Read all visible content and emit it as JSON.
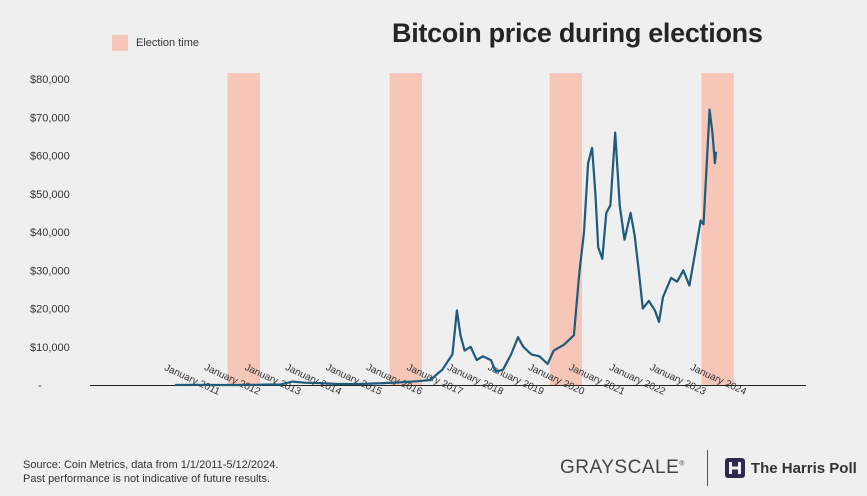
{
  "title": "Bitcoin price during elections",
  "legend": {
    "label": "Election time",
    "color": "#f6c7b9"
  },
  "source_lines": [
    "Source: Coin Metrics, data from 1/1/2011-5/12/2024.",
    "Past performance is not indicative of future results."
  ],
  "logos": {
    "grayscale": "GRAYSCALE",
    "harris": "The Harris Poll"
  },
  "colors": {
    "line": "#1f5a7a",
    "band": "#f6c7b9",
    "background": "#efefef"
  },
  "chart_data": {
    "type": "line",
    "title": "Bitcoin price during elections",
    "xlabel": "",
    "ylabel": "",
    "x_tick_labels": [
      "January 2011",
      "January 2012",
      "January 2013",
      "January 2014",
      "January 2015",
      "January 2016",
      "January 2017",
      "January 2018",
      "January 2019",
      "January 2020",
      "January 2021",
      "January 2022",
      "January 2023",
      "January 2024"
    ],
    "y_tick_labels": [
      "-",
      "$10,000",
      "$20,000",
      "$30,000",
      "$40,000",
      "$50,000",
      "$60,000",
      "$70,000",
      "$80,000"
    ],
    "y_ticks": [
      0,
      10000,
      20000,
      30000,
      40000,
      50000,
      60000,
      70000,
      80000
    ],
    "ylim": [
      0,
      80000
    ],
    "xlim": [
      2011.0,
      2024.5
    ],
    "election_periods": [
      [
        2012.3,
        2013.1
      ],
      [
        2016.3,
        2017.1
      ],
      [
        2020.25,
        2021.05
      ],
      [
        2024.0,
        2024.8
      ]
    ],
    "legend_position": "top-left",
    "grid": false,
    "series": [
      {
        "color": "#1f5a7a",
        "points": [
          [
            2011.0,
            0
          ],
          [
            2011.5,
            15
          ],
          [
            2012.0,
            5
          ],
          [
            2012.5,
            10
          ],
          [
            2013.0,
            15
          ],
          [
            2013.3,
            120
          ],
          [
            2013.6,
            100
          ],
          [
            2013.9,
            900
          ],
          [
            2014.2,
            600
          ],
          [
            2014.6,
            500
          ],
          [
            2015.0,
            250
          ],
          [
            2015.5,
            250
          ],
          [
            2016.0,
            420
          ],
          [
            2016.5,
            650
          ],
          [
            2017.0,
            1000
          ],
          [
            2017.3,
            1300
          ],
          [
            2017.6,
            4000
          ],
          [
            2017.85,
            8000
          ],
          [
            2017.96,
            19500
          ],
          [
            2018.05,
            13000
          ],
          [
            2018.15,
            9000
          ],
          [
            2018.3,
            10000
          ],
          [
            2018.45,
            6500
          ],
          [
            2018.6,
            7500
          ],
          [
            2018.8,
            6500
          ],
          [
            2018.92,
            3500
          ],
          [
            2019.1,
            4000
          ],
          [
            2019.3,
            8000
          ],
          [
            2019.47,
            12500
          ],
          [
            2019.6,
            10000
          ],
          [
            2019.8,
            8000
          ],
          [
            2020.0,
            7500
          ],
          [
            2020.2,
            5500
          ],
          [
            2020.35,
            9000
          ],
          [
            2020.6,
            10500
          ],
          [
            2020.85,
            13000
          ],
          [
            2020.98,
            29000
          ],
          [
            2021.1,
            40000
          ],
          [
            2021.2,
            58000
          ],
          [
            2021.3,
            62000
          ],
          [
            2021.38,
            50000
          ],
          [
            2021.45,
            36000
          ],
          [
            2021.55,
            33000
          ],
          [
            2021.65,
            45000
          ],
          [
            2021.75,
            47000
          ],
          [
            2021.87,
            66000
          ],
          [
            2021.98,
            47000
          ],
          [
            2022.1,
            38000
          ],
          [
            2022.25,
            45000
          ],
          [
            2022.35,
            39000
          ],
          [
            2022.45,
            30000
          ],
          [
            2022.55,
            20000
          ],
          [
            2022.7,
            22000
          ],
          [
            2022.85,
            19500
          ],
          [
            2022.95,
            16500
          ],
          [
            2023.05,
            23000
          ],
          [
            2023.25,
            28000
          ],
          [
            2023.4,
            27000
          ],
          [
            2023.55,
            30000
          ],
          [
            2023.7,
            26000
          ],
          [
            2023.85,
            35000
          ],
          [
            2023.98,
            43000
          ],
          [
            2024.05,
            42000
          ],
          [
            2024.15,
            62000
          ],
          [
            2024.2,
            72000
          ],
          [
            2024.27,
            66000
          ],
          [
            2024.33,
            58000
          ],
          [
            2024.36,
            61000
          ]
        ]
      }
    ]
  }
}
